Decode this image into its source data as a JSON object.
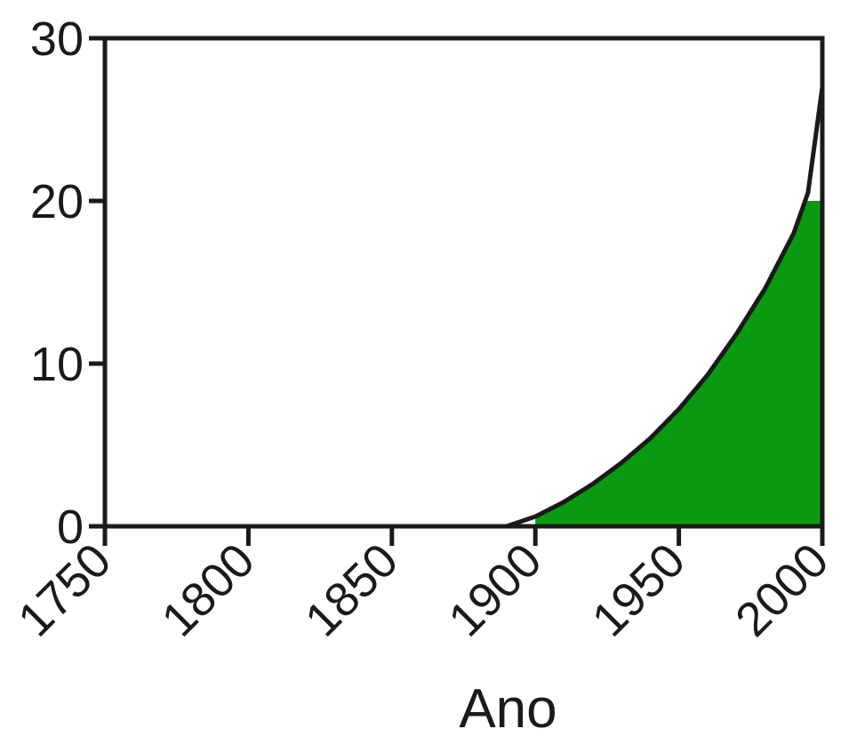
{
  "chart_data": {
    "type": "area",
    "xlabel": "Ano",
    "ylabel": "",
    "xlim": [
      1750,
      2000
    ],
    "ylim": [
      0,
      30
    ],
    "x_ticks": [
      "1750",
      "1800",
      "1850",
      "1900",
      "1950",
      "2000"
    ],
    "y_ticks": [
      "0",
      "10",
      "20",
      "30"
    ],
    "grid": false,
    "fill_color": "#0a9a12",
    "curve_color": "#1a1a1a",
    "series": [
      {
        "x": [
          1890,
          1900,
          1910,
          1920,
          1930,
          1940,
          1950,
          1960,
          1970,
          1980,
          1990,
          1995,
          2000
        ],
        "values": [
          0,
          0.6,
          1.5,
          2.6,
          3.9,
          5.4,
          7.2,
          9.3,
          11.8,
          14.6,
          18.0,
          20.5,
          27.0
        ]
      }
    ],
    "fill_threshold_x": 1900,
    "fill_top_at_end": 20
  }
}
